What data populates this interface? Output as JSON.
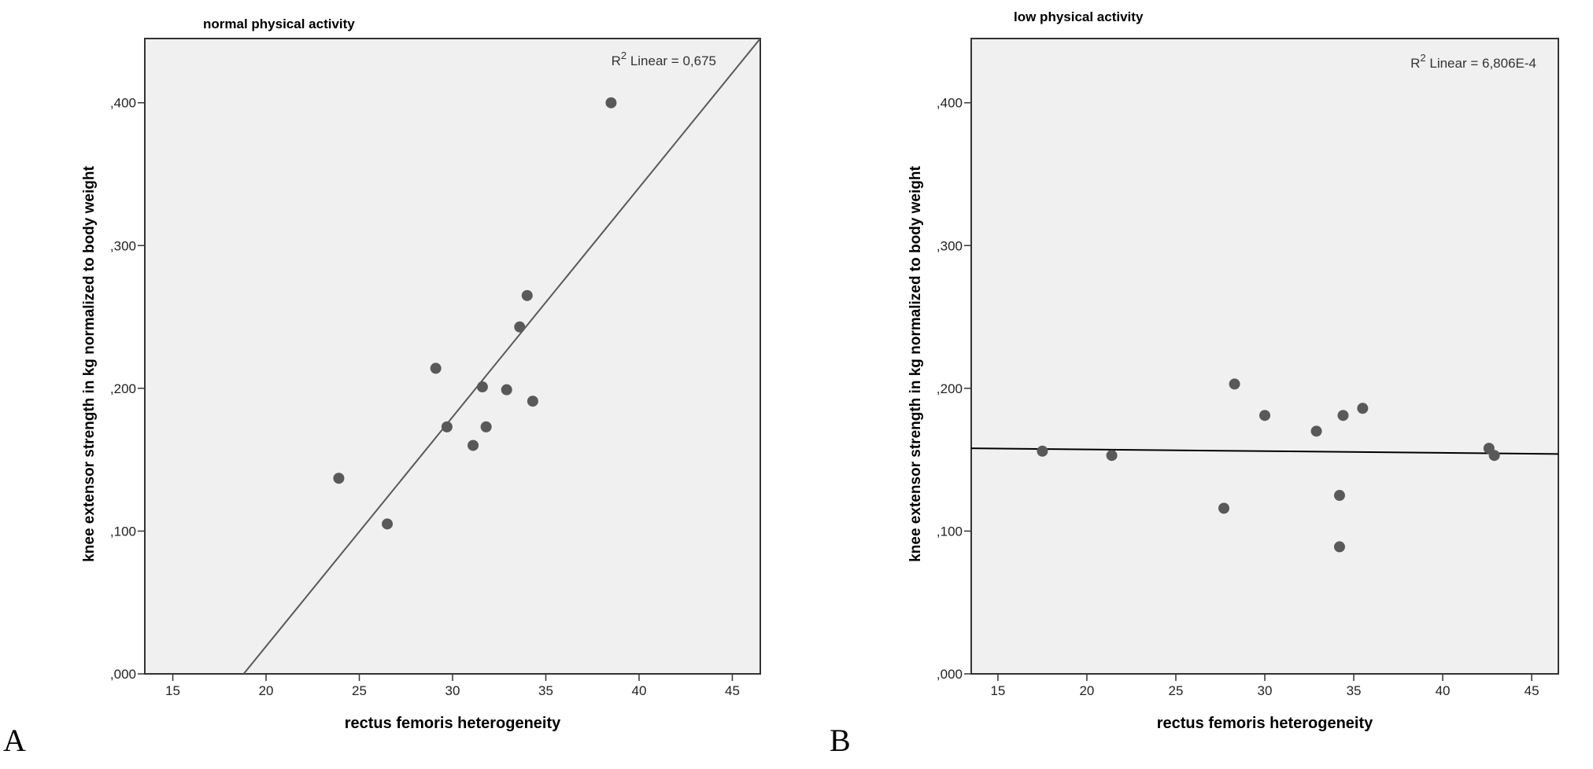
{
  "chart_data": [
    {
      "type": "scatter",
      "panel_label": "A",
      "title": "normal physical activity",
      "xlabel": "rectus femoris heterogeneity",
      "ylabel": "knee extensor strength in kg normalized to body weight",
      "xlim": [
        13.5,
        46.5
      ],
      "ylim": [
        0,
        0.445
      ],
      "x_ticks": [
        15,
        20,
        25,
        30,
        35,
        40,
        45
      ],
      "x_tick_labels": [
        "15",
        "20",
        "25",
        "30",
        "35",
        "40",
        "45"
      ],
      "y_ticks": [
        0,
        0.1,
        0.2,
        0.3,
        0.4
      ],
      "y_tick_labels": [
        ",000",
        ",100",
        ",200",
        ",300",
        ",400"
      ],
      "r2_label": "Linear = 0,675",
      "fit_line": {
        "x": [
          18.8,
          46.5
        ],
        "y": [
          0,
          0.445
        ]
      },
      "points": [
        {
          "x": 23.9,
          "y": 0.137
        },
        {
          "x": 26.5,
          "y": 0.105
        },
        {
          "x": 29.1,
          "y": 0.214
        },
        {
          "x": 29.7,
          "y": 0.173
        },
        {
          "x": 31.1,
          "y": 0.16
        },
        {
          "x": 31.6,
          "y": 0.201
        },
        {
          "x": 31.8,
          "y": 0.173
        },
        {
          "x": 32.9,
          "y": 0.199
        },
        {
          "x": 33.6,
          "y": 0.243
        },
        {
          "x": 34.0,
          "y": 0.265
        },
        {
          "x": 34.3,
          "y": 0.191
        },
        {
          "x": 38.5,
          "y": 0.4
        }
      ],
      "grid": false,
      "colors": {
        "background": "#f0f0f0",
        "point": "#595959",
        "line": "#595959"
      }
    },
    {
      "type": "scatter",
      "panel_label": "B",
      "title": "low physical activity",
      "xlabel": "rectus femoris heterogeneity",
      "ylabel": "knee extensor strength in kg normalized to body weight",
      "xlim": [
        13.5,
        46.5
      ],
      "ylim": [
        0,
        0.445
      ],
      "x_ticks": [
        15,
        20,
        25,
        30,
        35,
        40,
        45
      ],
      "x_tick_labels": [
        "15",
        "20",
        "25",
        "30",
        "35",
        "40",
        "45"
      ],
      "y_ticks": [
        0,
        0.1,
        0.2,
        0.3,
        0.4
      ],
      "y_tick_labels": [
        ",000",
        ",100",
        ",200",
        ",300",
        ",400"
      ],
      "r2_label": "Linear = 6,806E-4",
      "fit_line": {
        "x": [
          13.5,
          46.5
        ],
        "y": [
          0.158,
          0.154
        ]
      },
      "points": [
        {
          "x": 17.5,
          "y": 0.156
        },
        {
          "x": 21.4,
          "y": 0.153
        },
        {
          "x": 27.7,
          "y": 0.116
        },
        {
          "x": 28.3,
          "y": 0.203
        },
        {
          "x": 30.0,
          "y": 0.181
        },
        {
          "x": 32.9,
          "y": 0.17
        },
        {
          "x": 34.2,
          "y": 0.125
        },
        {
          "x": 34.2,
          "y": 0.089
        },
        {
          "x": 34.4,
          "y": 0.181
        },
        {
          "x": 35.5,
          "y": 0.186
        },
        {
          "x": 42.6,
          "y": 0.158
        },
        {
          "x": 42.9,
          "y": 0.153
        }
      ],
      "grid": false,
      "colors": {
        "background": "#f0f0f0",
        "point": "#595959",
        "line": "#000000"
      }
    }
  ]
}
